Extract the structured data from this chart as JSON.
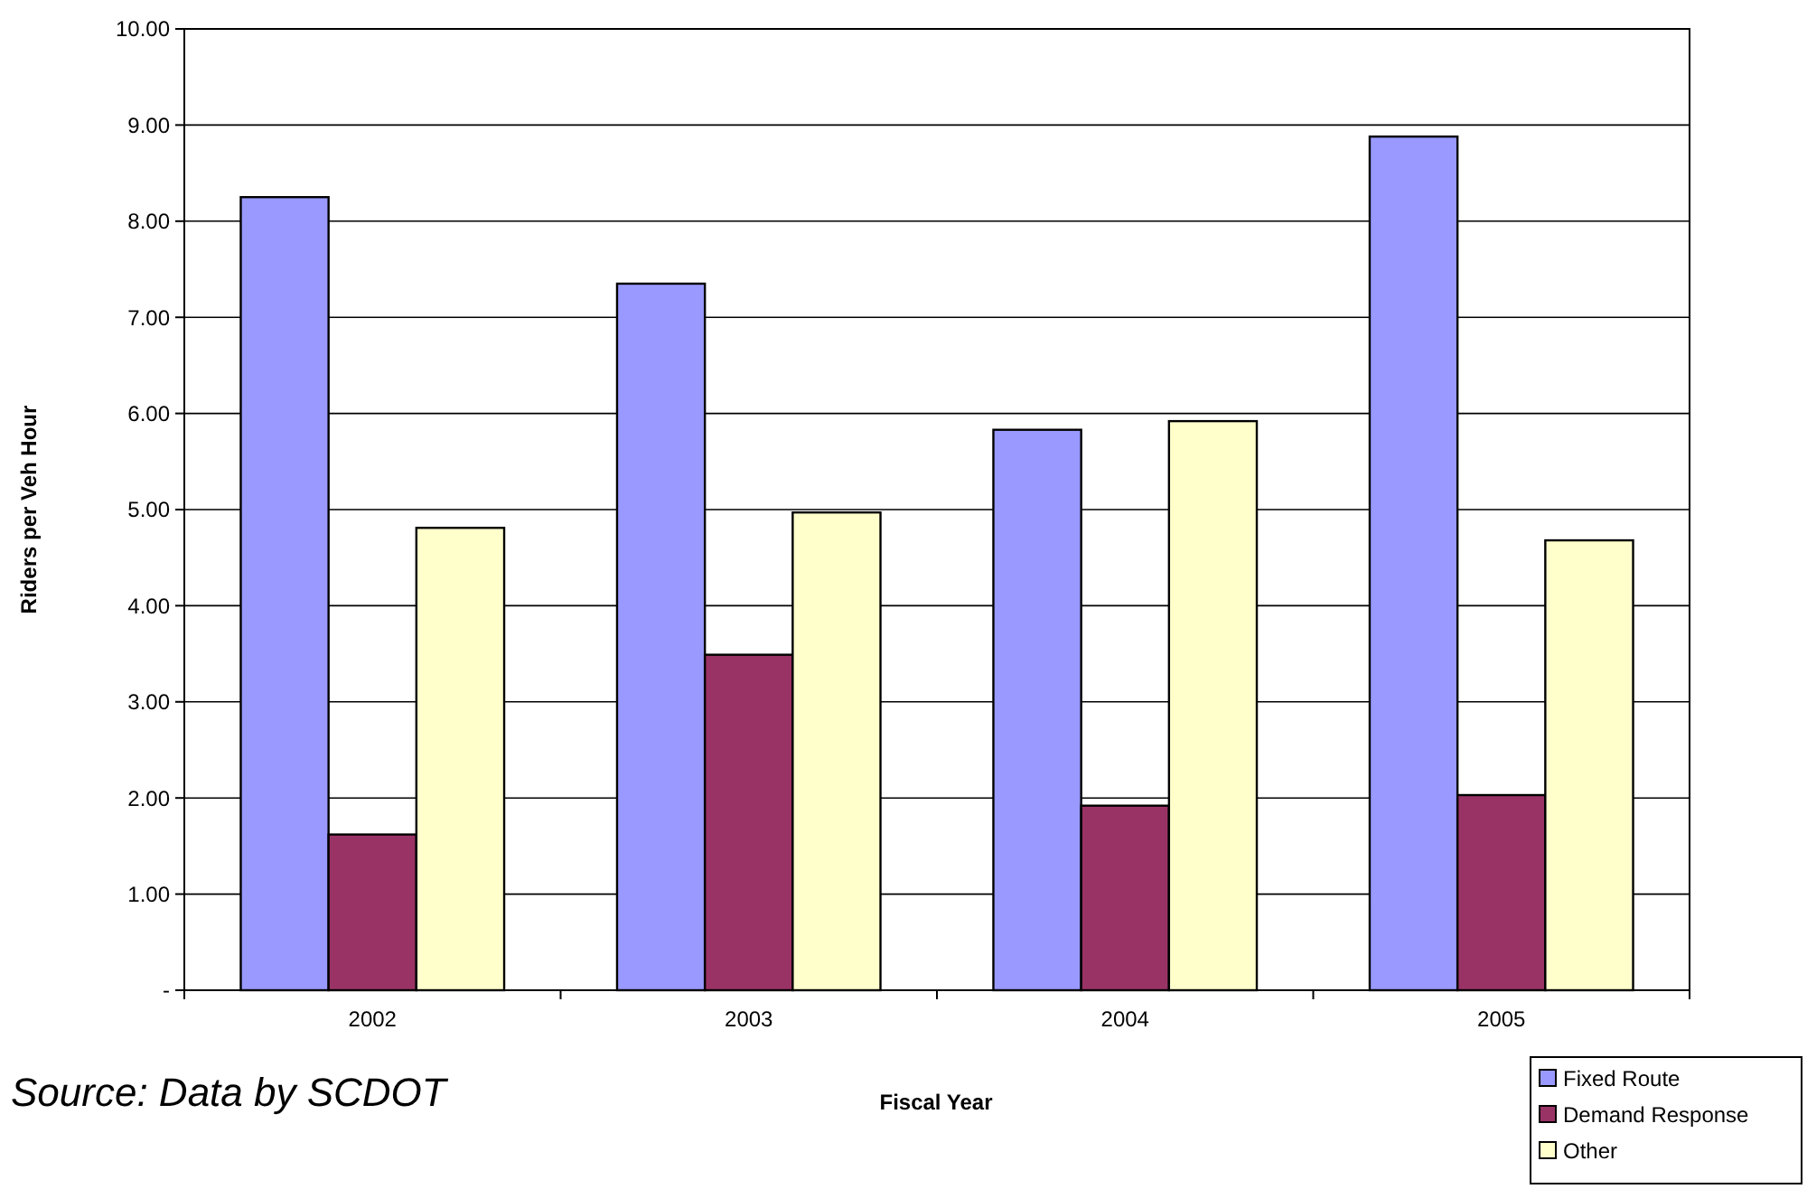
{
  "chart_data": {
    "type": "bar",
    "xlabel": "Fiscal Year",
    "ylabel": "Riders per Veh Hour",
    "categories": [
      "2002",
      "2003",
      "2004",
      "2005"
    ],
    "series": [
      {
        "name": "Fixed Route",
        "color": "#9999ff",
        "values": [
          8.25,
          7.35,
          5.83,
          8.88
        ]
      },
      {
        "name": "Demand Response",
        "color": "#993366",
        "values": [
          1.62,
          3.49,
          1.92,
          2.03
        ]
      },
      {
        "name": "Other",
        "color": "#ffffcc",
        "values": [
          4.81,
          4.97,
          5.92,
          4.68
        ]
      }
    ],
    "ylim": [
      0,
      10
    ],
    "yticks": [
      {
        "value": 0,
        "label": "-"
      },
      {
        "value": 1,
        "label": "1.00"
      },
      {
        "value": 2,
        "label": "2.00"
      },
      {
        "value": 3,
        "label": "3.00"
      },
      {
        "value": 4,
        "label": "4.00"
      },
      {
        "value": 5,
        "label": "5.00"
      },
      {
        "value": 6,
        "label": "6.00"
      },
      {
        "value": 7,
        "label": "7.00"
      },
      {
        "value": 8,
        "label": "8.00"
      },
      {
        "value": 9,
        "label": "9.00"
      },
      {
        "value": 10,
        "label": "10.00"
      }
    ],
    "grid": "y",
    "legend": "bottom right",
    "annotations": [
      "Source: Data by SCDOT"
    ]
  }
}
